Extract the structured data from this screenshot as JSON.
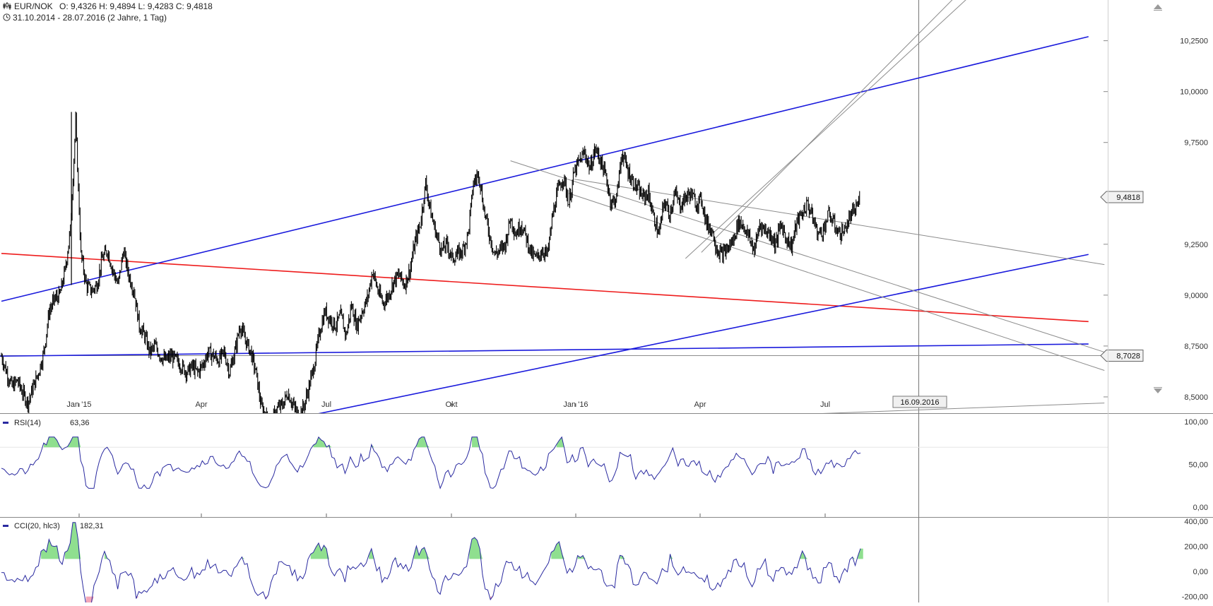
{
  "header": {
    "symbol": "EUR/NOK",
    "ohlc_text": "O: 9,4326  H: 9,4894  L: 9,4283  C: 9,4818",
    "range_text": "31.10.2014 - 28.07.2016 (2 Jahre, 1 Tag)"
  },
  "icons": {
    "chart": "candlestick-chart-icon",
    "clock": "clock-icon",
    "scroll_up": "triangle-up-icon",
    "scroll_down": "triangle-down-icon"
  },
  "colors": {
    "price": "#000000",
    "trend_blue": "#1a1adc",
    "trend_red": "#ee1c1c",
    "thin_line": "#8c8c8c",
    "indicator": "#2a2aa0",
    "overbought_fill": "#8fdf8f",
    "oversold_fill": "#f4a7b9"
  },
  "chart_data": [
    {
      "type": "line",
      "name": "price",
      "x_ticks": [
        "Jan '15",
        "Apr",
        "Jul",
        "Okt",
        "Jan '16",
        "Apr",
        "Jul"
      ],
      "y_ticks": [
        "10,2500",
        "10,0000",
        "9,7500",
        "9,2500",
        "9,0000",
        "8,7500",
        "8,5000"
      ],
      "ylim": [
        8.42,
        10.45
      ],
      "last_value_label": "9,4818",
      "last_value": 9.4818,
      "hline_label": "8,7028",
      "hline_value": 8.7028,
      "cursor_date_label": "16.09.2016",
      "series_close": [
        8.7,
        8.62,
        8.55,
        8.58,
        8.52,
        8.47,
        8.55,
        8.62,
        8.72,
        8.92,
        8.98,
        9.0,
        9.12,
        9.32,
        9.85,
        9.2,
        9.05,
        9.02,
        9.05,
        9.18,
        9.22,
        9.12,
        9.05,
        9.22,
        9.1,
        9.02,
        8.85,
        8.8,
        8.72,
        8.75,
        8.7,
        8.68,
        8.7,
        8.68,
        8.65,
        8.62,
        8.65,
        8.62,
        8.66,
        8.72,
        8.7,
        8.68,
        8.72,
        8.62,
        8.72,
        8.85,
        8.78,
        8.72,
        8.62,
        8.45,
        8.4,
        8.38,
        8.44,
        8.46,
        8.52,
        8.46,
        8.41,
        8.45,
        8.55,
        8.66,
        8.82,
        8.92,
        8.88,
        8.85,
        8.9,
        8.8,
        8.95,
        8.85,
        8.92,
        8.98,
        9.12,
        9.02,
        8.96,
        9.0,
        9.07,
        9.1,
        9.05,
        9.12,
        9.26,
        9.35,
        9.55,
        9.4,
        9.3,
        9.22,
        9.25,
        9.18,
        9.2,
        9.22,
        9.3,
        9.55,
        9.6,
        9.42,
        9.3,
        9.2,
        9.22,
        9.25,
        9.38,
        9.3,
        9.35,
        9.28,
        9.2,
        9.18,
        9.22,
        9.2,
        9.4,
        9.52,
        9.58,
        9.45,
        9.6,
        9.66,
        9.7,
        9.62,
        9.72,
        9.66,
        9.58,
        9.45,
        9.48,
        9.7,
        9.62,
        9.56,
        9.52,
        9.48,
        9.5,
        9.38,
        9.3,
        9.46,
        9.4,
        9.5,
        9.44,
        9.48,
        9.5,
        9.45,
        9.47,
        9.35,
        9.32,
        9.22,
        9.2,
        9.23,
        9.27,
        9.36,
        9.34,
        9.28,
        9.22,
        9.35,
        9.32,
        9.3,
        9.25,
        9.35,
        9.28,
        9.24,
        9.36,
        9.4,
        9.45,
        9.38,
        9.3,
        9.32,
        9.4,
        9.35,
        9.3,
        9.32,
        9.38,
        9.42,
        9.48
      ]
    },
    {
      "type": "line",
      "name": "RSI",
      "title": "RSI(14)",
      "last_value_label": "63,36",
      "last_value": 63.36,
      "y_ticks": [
        "100,00",
        "50,00",
        "0,00"
      ],
      "ylim": [
        0,
        100
      ],
      "overbought": 70
    },
    {
      "type": "line",
      "name": "CCI",
      "title": "CCI(20, hlc3)",
      "last_value_label": "182,31",
      "last_value": 182.31,
      "y_ticks": [
        "400,00",
        "200,00",
        "0,00",
        "-200,00"
      ],
      "ylim": [
        -230,
        400
      ],
      "overbought": 100,
      "oversold": -200
    }
  ]
}
